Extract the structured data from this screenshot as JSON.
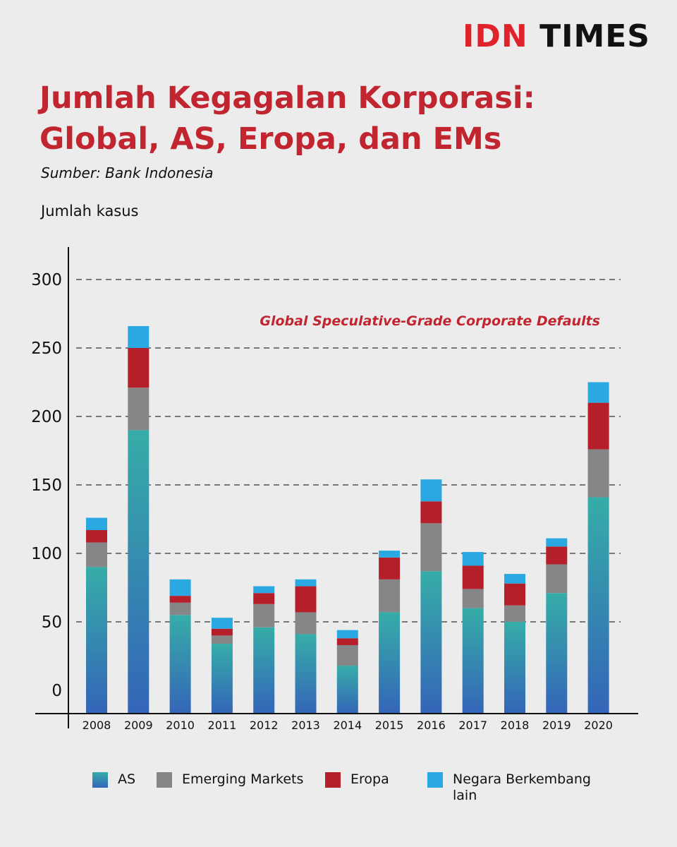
{
  "brand": {
    "part1": "IDN",
    "part2": "TIMES"
  },
  "header": {
    "title": "Jumlah Kegagalan Korporasi: Global, AS, Eropa, dan EMs",
    "source": "Sumber: Bank Indonesia",
    "unit": "Jumlah kasus"
  },
  "colors": {
    "AS": "#3a8fb5",
    "Emerging Markets": "#858688",
    "Eropa": "#b51f29",
    "Negara Berkembang lain": "#2aa8e2",
    "annotation": "#c12530"
  },
  "chart_data": {
    "type": "bar",
    "stacked": true,
    "annotation": "Global Speculative-Grade Corporate Defaults",
    "categories": [
      "2008",
      "2009",
      "2010",
      "2011",
      "2012",
      "2013",
      "2014",
      "2015",
      "2016",
      "2017",
      "2018",
      "2019",
      "2020"
    ],
    "series": [
      {
        "name": "AS",
        "values": [
          90,
          190,
          55,
          34,
          46,
          41,
          18,
          57,
          87,
          60,
          50,
          71,
          141
        ]
      },
      {
        "name": "Emerging Markets",
        "values": [
          18,
          31,
          9,
          6,
          17,
          16,
          15,
          24,
          35,
          14,
          12,
          21,
          35
        ]
      },
      {
        "name": "Eropa",
        "values": [
          9,
          29,
          5,
          5,
          8,
          19,
          5,
          16,
          16,
          17,
          16,
          13,
          34
        ]
      },
      {
        "name": "Negara Berkembang lain",
        "values": [
          9,
          16,
          12,
          8,
          5,
          5,
          6,
          5,
          16,
          10,
          7,
          6,
          15
        ]
      }
    ],
    "yticks": [
      0,
      50,
      100,
      150,
      200,
      250,
      300
    ],
    "ylim": [
      -20,
      326
    ],
    "grid": "dashed horizontal",
    "legend_position": "bottom"
  }
}
